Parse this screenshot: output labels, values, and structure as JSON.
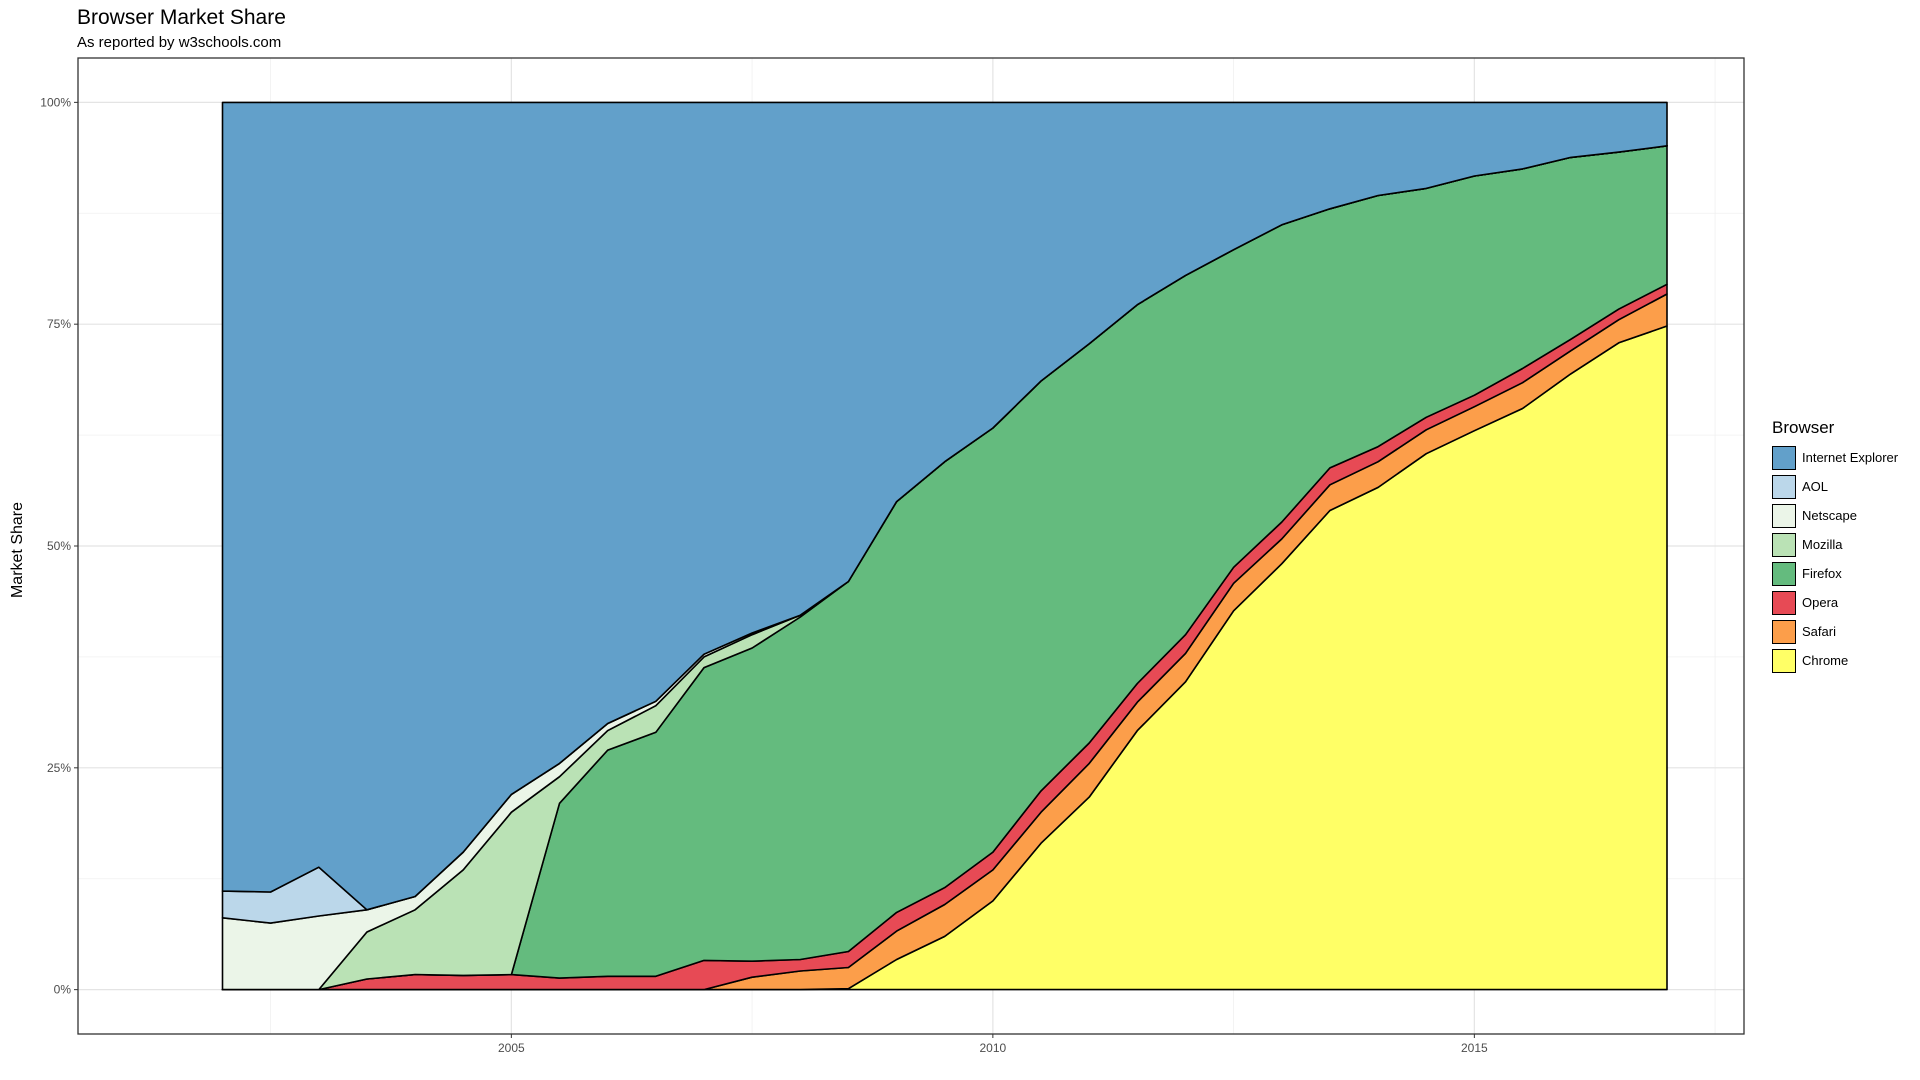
{
  "title": "Browser Market Share",
  "subtitle": "As reported by w3schools.com",
  "chart_data": {
    "type": "area",
    "stacked": true,
    "ylabel": "Market Share",
    "xlabel": "",
    "xlim": [
      2000.5,
      2017.8
    ],
    "ylim": [
      -0.05,
      1.05
    ],
    "x_ticks": [
      2005,
      2010,
      2015
    ],
    "y_ticks": [
      0,
      0.25,
      0.5,
      0.75,
      1.0
    ],
    "y_tick_labels": [
      "0%",
      "25%",
      "50%",
      "75%",
      "100%"
    ],
    "grid": true,
    "legend_title": "Browser",
    "legend_position": "right",
    "stack_order_bottom_to_top": [
      "Chrome",
      "Safari",
      "Opera",
      "Firefox",
      "Mozilla",
      "Netscape",
      "AOL",
      "Internet Explorer"
    ],
    "legend_order": [
      "Internet Explorer",
      "AOL",
      "Netscape",
      "Mozilla",
      "Firefox",
      "Opera",
      "Safari",
      "Chrome"
    ],
    "colors": {
      "Internet Explorer": "#62A0CA",
      "AOL": "#BBD7EA",
      "Netscape": "#EBF5E8",
      "Mozilla": "#BAE2B5",
      "Firefox": "#64BB7E",
      "Opera": "#E74A55",
      "Safari": "#FC9E4A",
      "Chrome": "#FFFF66"
    },
    "x": [
      2002.0,
      2002.5,
      2003.0,
      2003.5,
      2004.0,
      2004.5,
      2005.0,
      2005.5,
      2006.0,
      2006.5,
      2007.0,
      2007.5,
      2008.0,
      2008.5,
      2009.0,
      2009.5,
      2010.0,
      2010.5,
      2011.0,
      2011.5,
      2012.0,
      2012.5,
      2013.0,
      2013.5,
      2014.0,
      2014.5,
      2015.0,
      2015.5,
      2016.0,
      2016.5,
      2017.0
    ],
    "cumulative_top": {
      "Chrome": [
        0,
        0,
        0,
        0,
        0,
        0,
        0,
        0,
        0,
        0,
        0,
        0,
        0,
        0.001,
        0.034,
        0.06,
        0.1,
        0.165,
        0.217,
        0.292,
        0.347,
        0.427,
        0.48,
        0.54,
        0.566,
        0.604,
        0.63,
        0.655,
        0.694,
        0.729,
        0.748
      ],
      "Safari": [
        0,
        0,
        0,
        0,
        0,
        0,
        0,
        0,
        0,
        0,
        0,
        0.014,
        0.021,
        0.025,
        0.066,
        0.096,
        0.135,
        0.2,
        0.255,
        0.324,
        0.379,
        0.458,
        0.508,
        0.569,
        0.595,
        0.631,
        0.657,
        0.684,
        0.72,
        0.755,
        0.784
      ],
      "Opera": [
        0,
        0,
        0,
        0.012,
        0.017,
        0.016,
        0.017,
        0.013,
        0.015,
        0.015,
        0.033,
        0.032,
        0.034,
        0.043,
        0.087,
        0.115,
        0.155,
        0.224,
        0.278,
        0.345,
        0.4,
        0.476,
        0.527,
        0.588,
        0.612,
        0.645,
        0.67,
        0.7,
        0.733,
        0.767,
        0.795
      ],
      "Firefox": [
        0,
        0,
        0,
        0.012,
        0.017,
        0.016,
        0.017,
        0.21,
        0.27,
        0.29,
        0.363,
        0.385,
        0.42,
        0.46,
        0.55,
        0.595,
        0.633,
        0.686,
        0.728,
        0.772,
        0.805,
        0.834,
        0.862,
        0.88,
        0.895,
        0.903,
        0.917,
        0.925,
        0.938,
        0.944,
        0.951
      ],
      "Mozilla": [
        0,
        0,
        0,
        0.065,
        0.09,
        0.135,
        0.2,
        0.24,
        0.292,
        0.32,
        0.375,
        0.4,
        0.422,
        0.46,
        0.55,
        0.595,
        0.633,
        0.686,
        0.728,
        0.772,
        0.805,
        0.834,
        0.862,
        0.88,
        0.895,
        0.903,
        0.917,
        0.925,
        0.938,
        0.944,
        0.951
      ],
      "Netscape": [
        0.081,
        0.075,
        0.083,
        0.09,
        0.105,
        0.155,
        0.22,
        0.255,
        0.3,
        0.325,
        0.378,
        0.402,
        0.422,
        0.46,
        0.55,
        0.595,
        0.633,
        0.686,
        0.728,
        0.772,
        0.805,
        0.834,
        0.862,
        0.88,
        0.895,
        0.903,
        0.917,
        0.925,
        0.938,
        0.944,
        0.951
      ],
      "AOL": [
        0.111,
        0.11,
        0.138,
        0.09,
        0.105,
        0.155,
        0.22,
        0.255,
        0.3,
        0.325,
        0.378,
        0.402,
        0.422,
        0.46,
        0.55,
        0.595,
        0.633,
        0.686,
        0.728,
        0.772,
        0.805,
        0.834,
        0.862,
        0.88,
        0.895,
        0.903,
        0.917,
        0.925,
        0.938,
        0.944,
        0.951
      ],
      "Internet Explorer": [
        1,
        1,
        1,
        1,
        1,
        1,
        1,
        1,
        1,
        1,
        1,
        1,
        1,
        1,
        1,
        1,
        1,
        1,
        1,
        1,
        1,
        1,
        1,
        1,
        1,
        1,
        1,
        1,
        1,
        1,
        1
      ]
    },
    "series": [
      {
        "name": "Chrome",
        "values": [
          0,
          0,
          0,
          0,
          0,
          0,
          0,
          0,
          0,
          0,
          0,
          0,
          0,
          0.001,
          0.034,
          0.06,
          0.1,
          0.165,
          0.217,
          0.292,
          0.347,
          0.427,
          0.48,
          0.54,
          0.566,
          0.604,
          0.63,
          0.655,
          0.694,
          0.729,
          0.748
        ]
      },
      {
        "name": "Safari",
        "values": [
          0,
          0,
          0,
          0,
          0,
          0,
          0,
          0,
          0,
          0,
          0,
          0.014,
          0.021,
          0.024,
          0.032,
          0.036,
          0.035,
          0.035,
          0.038,
          0.032,
          0.032,
          0.031,
          0.028,
          0.029,
          0.029,
          0.027,
          0.027,
          0.029,
          0.026,
          0.026,
          0.036
        ]
      },
      {
        "name": "Opera",
        "values": [
          0,
          0,
          0,
          0.012,
          0.017,
          0.016,
          0.017,
          0.013,
          0.015,
          0.015,
          0.033,
          0.018,
          0.013,
          0.018,
          0.021,
          0.019,
          0.02,
          0.024,
          0.023,
          0.021,
          0.021,
          0.018,
          0.019,
          0.019,
          0.017,
          0.014,
          0.013,
          0.016,
          0.013,
          0.012,
          0.011
        ]
      },
      {
        "name": "Firefox",
        "values": [
          0,
          0,
          0,
          0,
          0,
          0,
          0,
          0.197,
          0.255,
          0.275,
          0.33,
          0.353,
          0.386,
          0.417,
          0.463,
          0.48,
          0.478,
          0.462,
          0.45,
          0.427,
          0.405,
          0.358,
          0.335,
          0.292,
          0.283,
          0.258,
          0.247,
          0.225,
          0.205,
          0.177,
          0.156
        ]
      },
      {
        "name": "Mozilla",
        "values": [
          0,
          0,
          0,
          0.053,
          0.073,
          0.119,
          0.183,
          0.03,
          0.022,
          0.03,
          0.012,
          0.015,
          0.002,
          0,
          0,
          0,
          0,
          0,
          0,
          0,
          0,
          0,
          0,
          0,
          0,
          0,
          0,
          0,
          0,
          0,
          0
        ]
      },
      {
        "name": "Netscape",
        "values": [
          0.081,
          0.075,
          0.083,
          0.025,
          0.015,
          0.02,
          0.02,
          0.015,
          0.008,
          0.005,
          0.003,
          0.002,
          0,
          0,
          0,
          0,
          0,
          0,
          0,
          0,
          0,
          0,
          0,
          0,
          0,
          0,
          0,
          0,
          0,
          0,
          0
        ]
      },
      {
        "name": "AOL",
        "values": [
          0.03,
          0.035,
          0.055,
          0,
          0,
          0,
          0,
          0,
          0,
          0,
          0,
          0,
          0,
          0,
          0,
          0,
          0,
          0,
          0,
          0,
          0,
          0,
          0,
          0,
          0,
          0,
          0,
          0,
          0,
          0,
          0
        ]
      },
      {
        "name": "Internet Explorer",
        "values": [
          0.889,
          0.89,
          0.862,
          0.91,
          0.895,
          0.845,
          0.78,
          0.745,
          0.7,
          0.675,
          0.622,
          0.598,
          0.578,
          0.54,
          0.45,
          0.405,
          0.367,
          0.314,
          0.272,
          0.228,
          0.195,
          0.166,
          0.138,
          0.12,
          0.105,
          0.097,
          0.083,
          0.075,
          0.062,
          0.056,
          0.049
        ]
      }
    ]
  }
}
